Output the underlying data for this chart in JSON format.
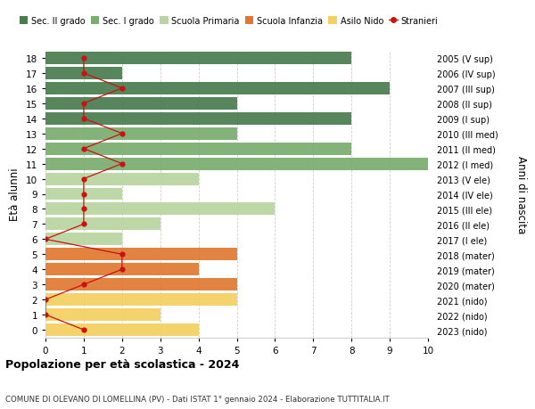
{
  "ages": [
    18,
    17,
    16,
    15,
    14,
    13,
    12,
    11,
    10,
    9,
    8,
    7,
    6,
    5,
    4,
    3,
    2,
    1,
    0
  ],
  "years": [
    "2005 (V sup)",
    "2006 (IV sup)",
    "2007 (III sup)",
    "2008 (II sup)",
    "2009 (I sup)",
    "2010 (III med)",
    "2011 (II med)",
    "2012 (I med)",
    "2013 (V ele)",
    "2014 (IV ele)",
    "2015 (III ele)",
    "2016 (II ele)",
    "2017 (I ele)",
    "2018 (mater)",
    "2019 (mater)",
    "2020 (mater)",
    "2021 (nido)",
    "2022 (nido)",
    "2023 (nido)"
  ],
  "bar_values": [
    8,
    2,
    9,
    5,
    8,
    5,
    8,
    10,
    4,
    2,
    6,
    3,
    2,
    5,
    4,
    5,
    5,
    3,
    4
  ],
  "bar_colors": [
    "#4a7c4e",
    "#4a7c4e",
    "#4a7c4e",
    "#4a7c4e",
    "#4a7c4e",
    "#7aad6e",
    "#7aad6e",
    "#7aad6e",
    "#b8d4a0",
    "#b8d4a0",
    "#b8d4a0",
    "#b8d4a0",
    "#b8d4a0",
    "#e07832",
    "#e07832",
    "#e07832",
    "#f5d060",
    "#f5d060",
    "#f5d060"
  ],
  "stranieri_values": [
    1,
    1,
    2,
    1,
    1,
    2,
    1,
    2,
    1,
    1,
    1,
    1,
    0,
    2,
    2,
    1,
    0,
    0,
    1
  ],
  "legend_labels": [
    "Sec. II grado",
    "Sec. I grado",
    "Scuola Primaria",
    "Scuola Infanzia",
    "Asilo Nido",
    "Stranieri"
  ],
  "legend_colors": [
    "#4a7c4e",
    "#7aad6e",
    "#b8d4a0",
    "#e07832",
    "#f5d060",
    "#cc1111"
  ],
  "ylabel": "Età alunni",
  "ylabel_right": "Anni di nascita",
  "title": "Popolazione per età scolastica - 2024",
  "subtitle": "COMUNE DI OLEVANO DI LOMELLINA (PV) - Dati ISTAT 1° gennaio 2024 - Elaborazione TUTTITALIA.IT",
  "xlim": [
    0,
    10
  ],
  "bar_height": 0.82,
  "background_color": "#ffffff",
  "grid_color": "#d0d0d0",
  "stranieri_color": "#cc1111"
}
